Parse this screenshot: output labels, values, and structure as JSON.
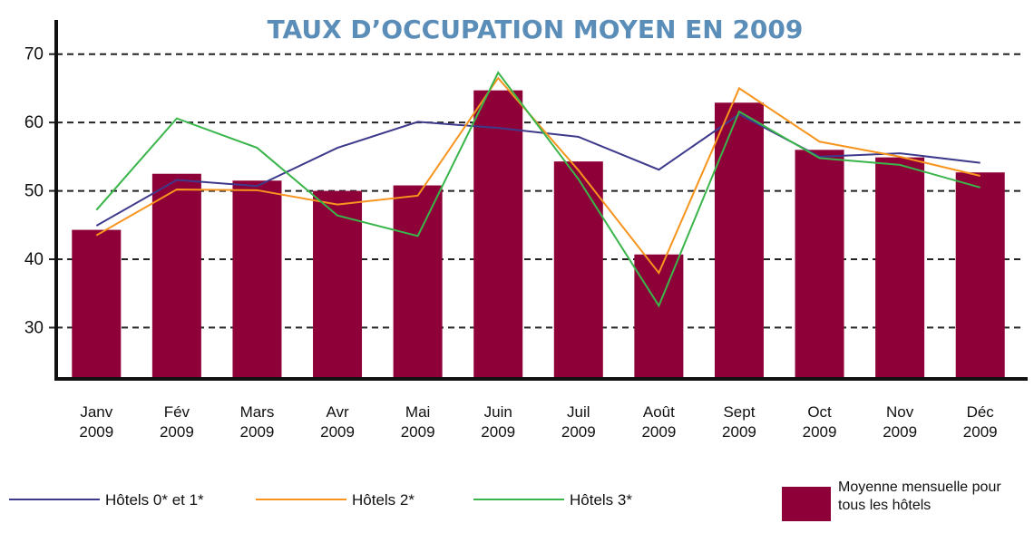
{
  "chart_data": {
    "type": "bar",
    "title": "TAUX D’OCCUPATION MOYEN EN 2009",
    "categories": [
      "Janv 2009",
      "Fév 2009",
      "Mars 2009",
      "Avr 2009",
      "Mai 2009",
      "Juin 2009",
      "Juil 2009",
      "Août 2009",
      "Sept 2009",
      "Oct 2009",
      "Nov 2009",
      "Déc 2009"
    ],
    "series": [
      {
        "name": "Moyenne mensuelle pour tous les hôtels",
        "type": "bar",
        "color": "#8e0038",
        "values": [
          44.3,
          52.5,
          51.5,
          50.0,
          50.8,
          64.7,
          54.3,
          40.7,
          62.9,
          56.0,
          54.9,
          52.7
        ]
      },
      {
        "name": "Hôtels 0* et 1*",
        "type": "line",
        "color": "#3d3a8c",
        "values": [
          44.9,
          51.6,
          50.7,
          56.3,
          60.1,
          59.2,
          57.9,
          53.1,
          61.2,
          55.0,
          55.5,
          54.1
        ]
      },
      {
        "name": "Hôtels 2*",
        "type": "line",
        "color": "#f7941d",
        "values": [
          43.5,
          50.2,
          50.1,
          48.0,
          49.3,
          66.5,
          53.0,
          38.0,
          65.0,
          57.2,
          55.0,
          52.2
        ]
      },
      {
        "name": "Hôtels 3*",
        "type": "line",
        "color": "#39b54a",
        "values": [
          47.2,
          60.6,
          56.3,
          46.4,
          43.4,
          67.3,
          51.7,
          33.2,
          61.6,
          54.8,
          53.8,
          50.5
        ]
      }
    ],
    "ylim": [
      22.5,
      75
    ],
    "yticks": [
      30,
      40,
      50,
      60,
      70
    ],
    "grid": true
  }
}
